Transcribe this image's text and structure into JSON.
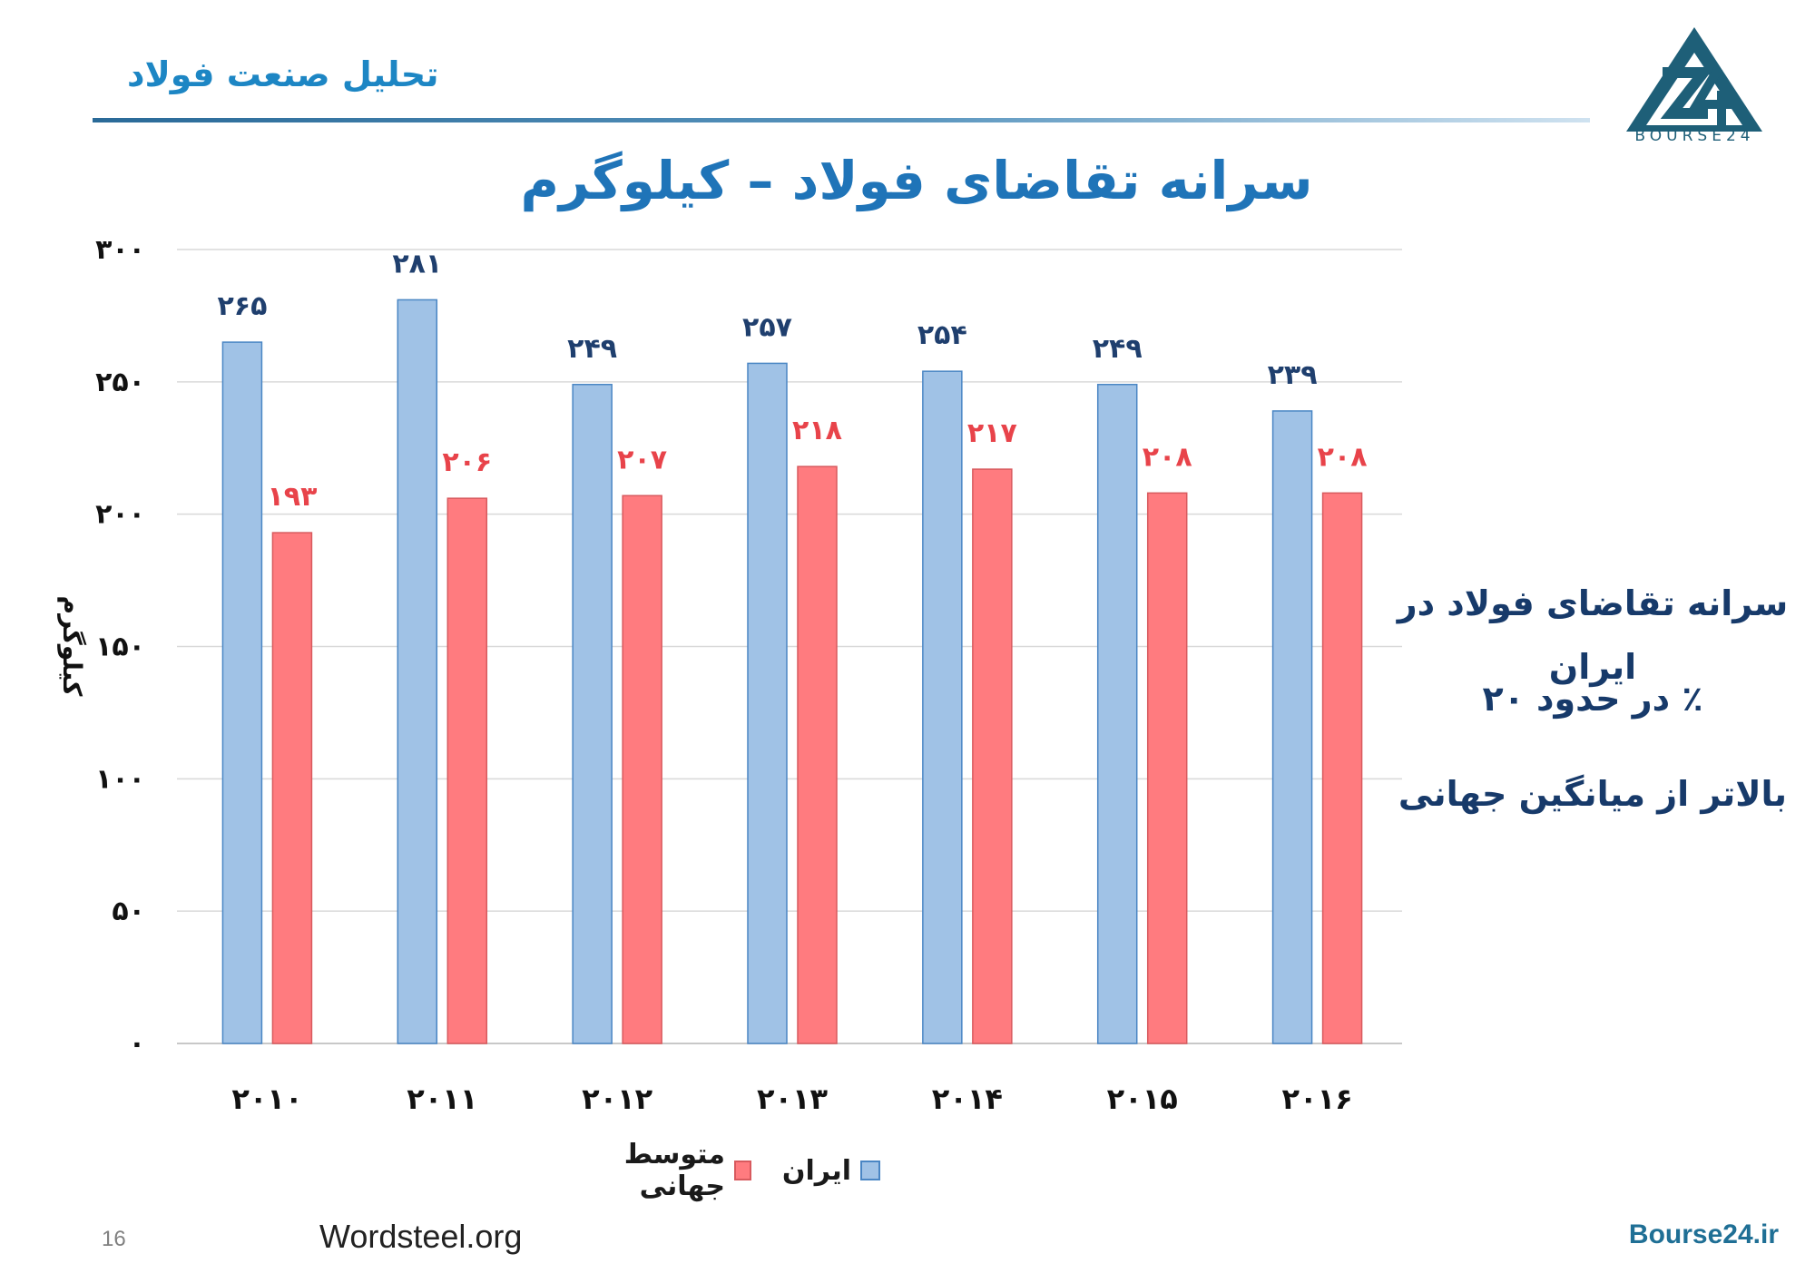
{
  "header": {
    "text": "تحلیل صنعت فولاد"
  },
  "logo": {
    "text": "BOURSE24"
  },
  "footer": {
    "page_number": "16",
    "source": "Wordsteel.org",
    "site": "Bourse24.ir"
  },
  "side_note": {
    "lines": [
      "سرانه تقاضای فولاد در ایران",
      "٪ در حدود ۲۰",
      "بالاتر از میانگین جهانی"
    ]
  },
  "colors": {
    "iran": "#a0c2e6",
    "iran_border": "#4a86c4",
    "world": "#ff7b7f",
    "world_border": "#d85a5e",
    "iran_label": "#1f3f6e",
    "world_label": "#e8434a",
    "title": "#1f74b8"
  },
  "chart_data": {
    "type": "bar",
    "title": "سرانه تقاضای فولاد – کیلوگرم",
    "ylabel": "کیلوگرم",
    "xlabel": "",
    "ylim": [
      0,
      300
    ],
    "yticks": [
      0,
      50,
      100,
      150,
      200,
      250,
      300
    ],
    "ytick_labels": [
      "۰",
      "۵۰",
      "۱۰۰",
      "۱۵۰",
      "۲۰۰",
      "۲۵۰",
      "۳۰۰"
    ],
    "categories": [
      2010,
      2011,
      2012,
      2013,
      2014,
      2015,
      2016
    ],
    "category_labels": [
      "۲۰۱۰",
      "۲۰۱۱",
      "۲۰۱۲",
      "۲۰۱۳",
      "۲۰۱۴",
      "۲۰۱۵",
      "۲۰۱۶"
    ],
    "grid": true,
    "legend_position": "bottom",
    "series": [
      {
        "name": "ایران",
        "values": [
          265,
          281,
          249,
          257,
          254,
          249,
          239
        ],
        "labels": [
          "۲۶۵",
          "۲۸۱",
          "۲۴۹",
          "۲۵۷",
          "۲۵۴",
          "۲۴۹",
          "۲۳۹"
        ]
      },
      {
        "name": "متوسط جهانی",
        "values": [
          193,
          206,
          207,
          218,
          217,
          208,
          208
        ],
        "labels": [
          "۱۹۳",
          "۲۰۶",
          "۲۰۷",
          "۲۱۸",
          "۲۱۷",
          "۲۰۸",
          "۲۰۸"
        ]
      }
    ]
  }
}
